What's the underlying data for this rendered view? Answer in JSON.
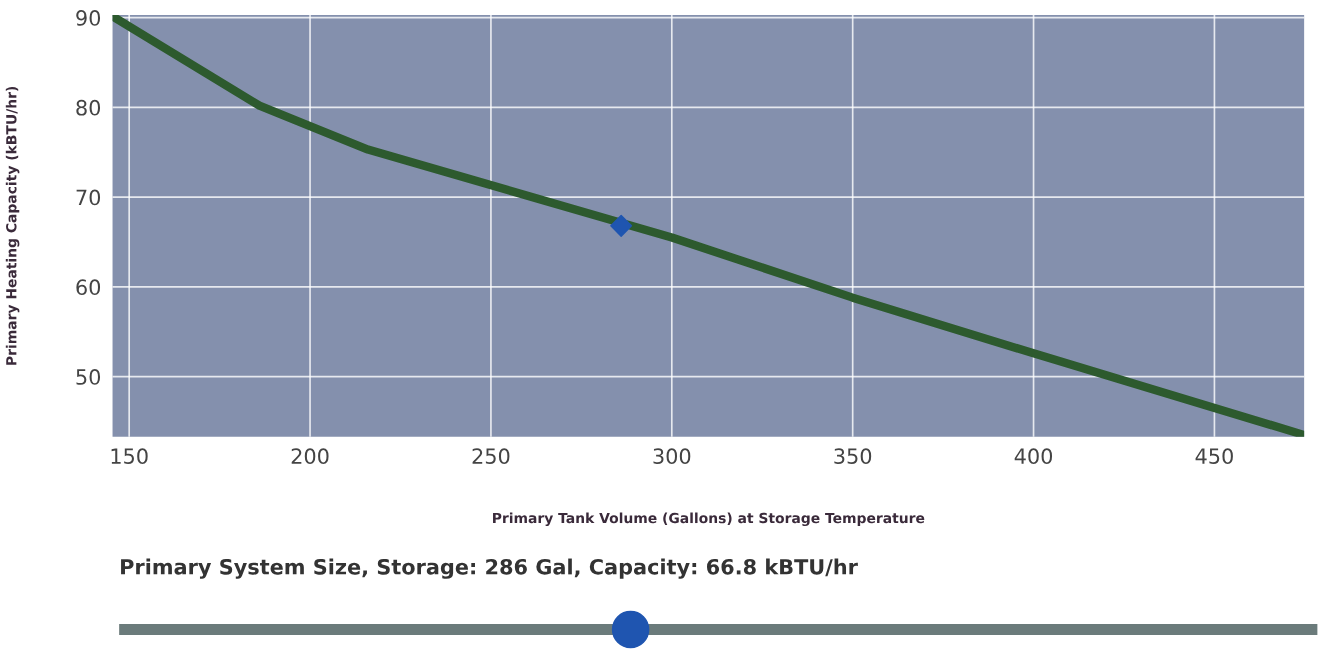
{
  "chart_data": {
    "type": "line",
    "xlabel": "Primary Tank Volume (Gallons) at Storage Temperature",
    "ylabel": "Primary Heating Capacity (kBTU/hr)",
    "annotations": [
      "Primary System Size, Storage: 286 Gal, Capacity: 66.8 kBTU/hr"
    ],
    "series": [
      {
        "color": "#2d5a2e",
        "x": [
          146,
          186,
          216,
          300,
          350,
          400,
          474.8
        ],
        "values": [
          90,
          80.2,
          75.3,
          65.5,
          58.8,
          52.6,
          43.5
        ]
      },
      {
        "type": "scatter",
        "marker": "diamond",
        "color": "#1f55b0",
        "x": [
          286
        ],
        "values": [
          66.8
        ]
      }
    ],
    "xlim": [
      145.4,
      474.8
    ],
    "ylim": [
      43.3,
      90.3
    ],
    "xticks": [
      150,
      200,
      250,
      300,
      350,
      400,
      450
    ],
    "yticks": [
      50,
      60,
      70,
      80,
      90
    ],
    "grid": true
  }
}
